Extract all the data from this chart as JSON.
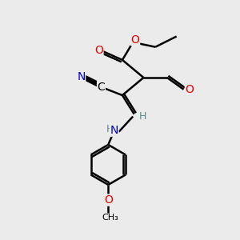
{
  "bg_color": "#ebebeb",
  "bond_color": "#000000",
  "bond_width": 1.8,
  "atom_colors": {
    "C": "#000000",
    "N": "#0000cc",
    "O": "#ee0000",
    "H": "#5a8a8a"
  },
  "font_size": 10,
  "small_font_size": 9,
  "fig_size": [
    3.0,
    3.0
  ],
  "dpi": 100
}
